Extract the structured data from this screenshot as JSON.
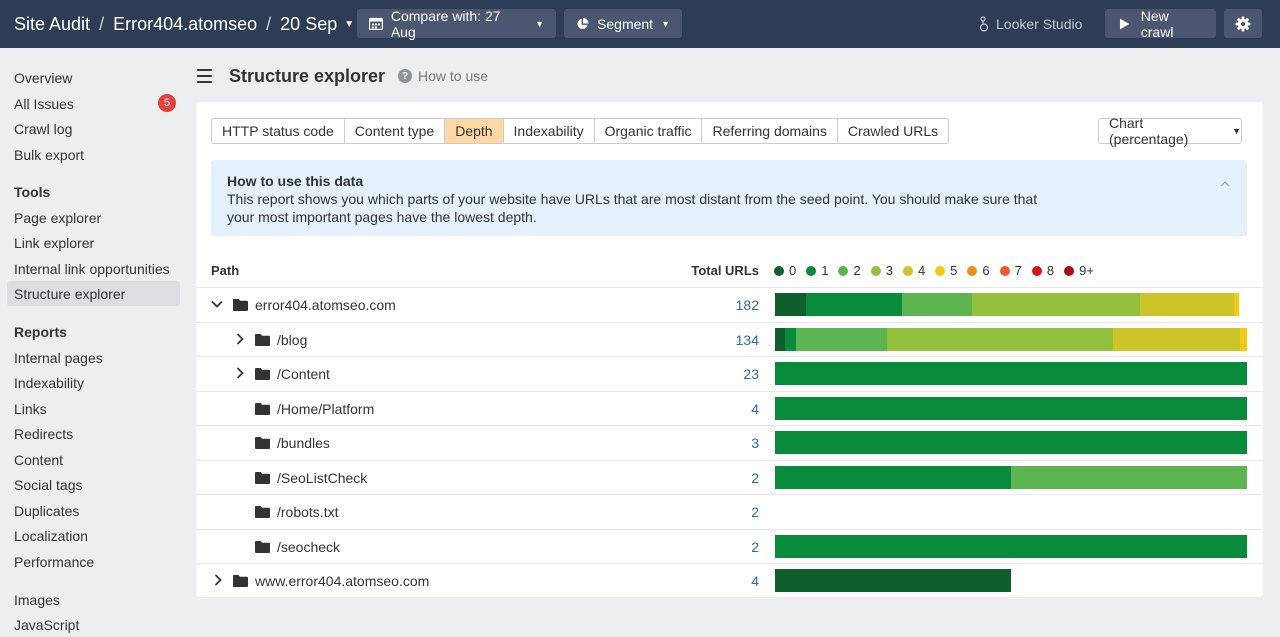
{
  "topbar": {
    "app": "Site Audit",
    "project": "Error404.atomseo",
    "crawl_date": "20 Sep",
    "separator": "/",
    "compare_label": "Compare with: 27 Aug",
    "segment_label": "Segment",
    "looker_label": "Looker Studio",
    "new_crawl_label": "New crawl"
  },
  "sidebar": {
    "top_items": [
      {
        "label": "Overview"
      },
      {
        "label": "All Issues",
        "badge": "5"
      },
      {
        "label": "Crawl log"
      },
      {
        "label": "Bulk export"
      }
    ],
    "tools_heading": "Tools",
    "tools": [
      {
        "label": "Page explorer"
      },
      {
        "label": "Link explorer"
      },
      {
        "label": "Internal link opportunities"
      },
      {
        "label": "Structure explorer",
        "active": true
      }
    ],
    "reports_heading": "Reports",
    "reports": [
      {
        "label": "Internal pages"
      },
      {
        "label": "Indexability"
      },
      {
        "label": "Links"
      },
      {
        "label": "Redirects"
      },
      {
        "label": "Content"
      },
      {
        "label": "Social tags"
      },
      {
        "label": "Duplicates"
      },
      {
        "label": "Localization"
      },
      {
        "label": "Performance"
      }
    ],
    "extra": [
      {
        "label": "Images"
      },
      {
        "label": "JavaScript"
      }
    ]
  },
  "header": {
    "title": "Structure explorer",
    "how_to_use": "How to use"
  },
  "tabs": [
    "HTTP status code",
    "Content type",
    "Depth",
    "Indexability",
    "Organic traffic",
    "Referring domains",
    "Crawled URLs"
  ],
  "active_tab": "Depth",
  "chart_mode": "Chart (percentage)",
  "info": {
    "title": "How to use this data",
    "body": "This report shows you which parts of your website have URLs that are most distant from the seed point. You should make sure that your most important pages have the lowest depth."
  },
  "table": {
    "col_path": "Path",
    "col_total": "Total URLs"
  },
  "legend": [
    {
      "label": "0",
      "color": "#0f5f2c"
    },
    {
      "label": "1",
      "color": "#088c3c"
    },
    {
      "label": "2",
      "color": "#5db551"
    },
    {
      "label": "3",
      "color": "#93c13e"
    },
    {
      "label": "4",
      "color": "#cdc42a"
    },
    {
      "label": "5",
      "color": "#f2cb16"
    },
    {
      "label": "6",
      "color": "#ee8f1d"
    },
    {
      "label": "7",
      "color": "#ec5a32"
    },
    {
      "label": "8",
      "color": "#d8141d"
    },
    {
      "label": "9+",
      "color": "#a40e12"
    }
  ],
  "rows": [
    {
      "name": "error404.atomseo.com",
      "total": "182",
      "level": 0,
      "expander": "down",
      "shares": [
        6.6,
        20.3,
        14.8,
        35.7,
        19.8,
        1.1
      ]
    },
    {
      "name": "/blog",
      "total": "134",
      "level": 1,
      "expander": "right",
      "shares": [
        2.2,
        2.2,
        19.4,
        47.8,
        26.9,
        1.5
      ]
    },
    {
      "name": "/Content",
      "total": "23",
      "level": 1,
      "expander": "right",
      "shares": [
        0,
        100
      ]
    },
    {
      "name": "/Home/Platform",
      "total": "4",
      "level": 1,
      "expander": "",
      "shares": [
        0,
        100
      ]
    },
    {
      "name": "/bundles",
      "total": "3",
      "level": 1,
      "expander": "",
      "shares": [
        0,
        100
      ]
    },
    {
      "name": "/SeoListCheck",
      "total": "2",
      "level": 1,
      "expander": "",
      "shares": [
        0,
        50,
        50
      ]
    },
    {
      "name": "/robots.txt",
      "total": "2",
      "level": 1,
      "expander": "",
      "shares": []
    },
    {
      "name": "/seocheck",
      "total": "2",
      "level": 1,
      "expander": "",
      "shares": [
        0,
        100
      ]
    },
    {
      "name": "www.error404.atomseo.com",
      "total": "4",
      "level": 0,
      "expander": "right",
      "shares": [
        50
      ]
    }
  ]
}
